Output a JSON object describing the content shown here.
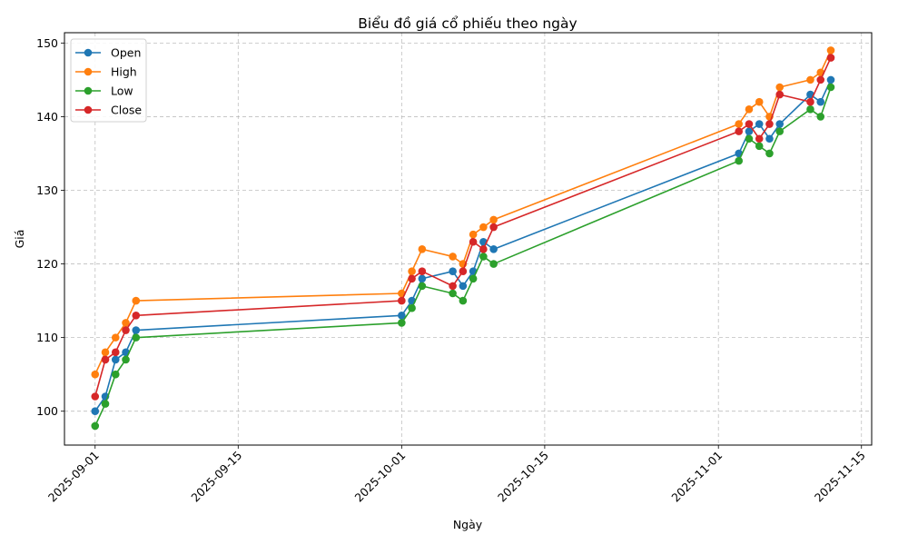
{
  "chart_data": {
    "type": "line",
    "title": "Biểu đồ giá cổ phiếu theo ngày",
    "xlabel": "Ngày",
    "ylabel": "Giá",
    "x": [
      "2025-09-01",
      "2025-09-02",
      "2025-09-03",
      "2025-09-04",
      "2025-09-05",
      "2025-10-01",
      "2025-10-02",
      "2025-10-03",
      "2025-10-06",
      "2025-10-07",
      "2025-10-08",
      "2025-10-09",
      "2025-10-10",
      "2025-11-03",
      "2025-11-04",
      "2025-11-05",
      "2025-11-06",
      "2025-11-07",
      "2025-11-10",
      "2025-11-11",
      "2025-11-12"
    ],
    "xlim": [
      "2025-08-29",
      "2025-11-16"
    ],
    "xticks": [
      "2025-09-01",
      "2025-09-15",
      "2025-10-01",
      "2025-10-15",
      "2025-11-01",
      "2025-11-15"
    ],
    "ylim": [
      95.4,
      151.4
    ],
    "yticks": [
      100,
      110,
      120,
      130,
      140,
      150
    ],
    "grid": true,
    "legend": "top-left",
    "series": [
      {
        "name": "Open",
        "color": "#1f77b4",
        "values": [
          100,
          102,
          107,
          108,
          111,
          113,
          115,
          118,
          119,
          117,
          119,
          123,
          122,
          135,
          138,
          139,
          137,
          139,
          143,
          142,
          145
        ]
      },
      {
        "name": "High",
        "color": "#ff7f0e",
        "values": [
          105,
          108,
          110,
          112,
          115,
          116,
          119,
          122,
          121,
          120,
          124,
          125,
          126,
          139,
          141,
          142,
          140,
          144,
          145,
          146,
          149
        ]
      },
      {
        "name": "Low",
        "color": "#2ca02c",
        "values": [
          98,
          101,
          105,
          107,
          110,
          112,
          114,
          117,
          116,
          115,
          118,
          121,
          120,
          134,
          137,
          136,
          135,
          138,
          141,
          140,
          144
        ]
      },
      {
        "name": "Close",
        "color": "#d62728",
        "values": [
          102,
          107,
          108,
          111,
          113,
          115,
          118,
          119,
          117,
          119,
          123,
          122,
          125,
          138,
          139,
          137,
          139,
          143,
          142,
          145,
          148
        ]
      }
    ]
  }
}
